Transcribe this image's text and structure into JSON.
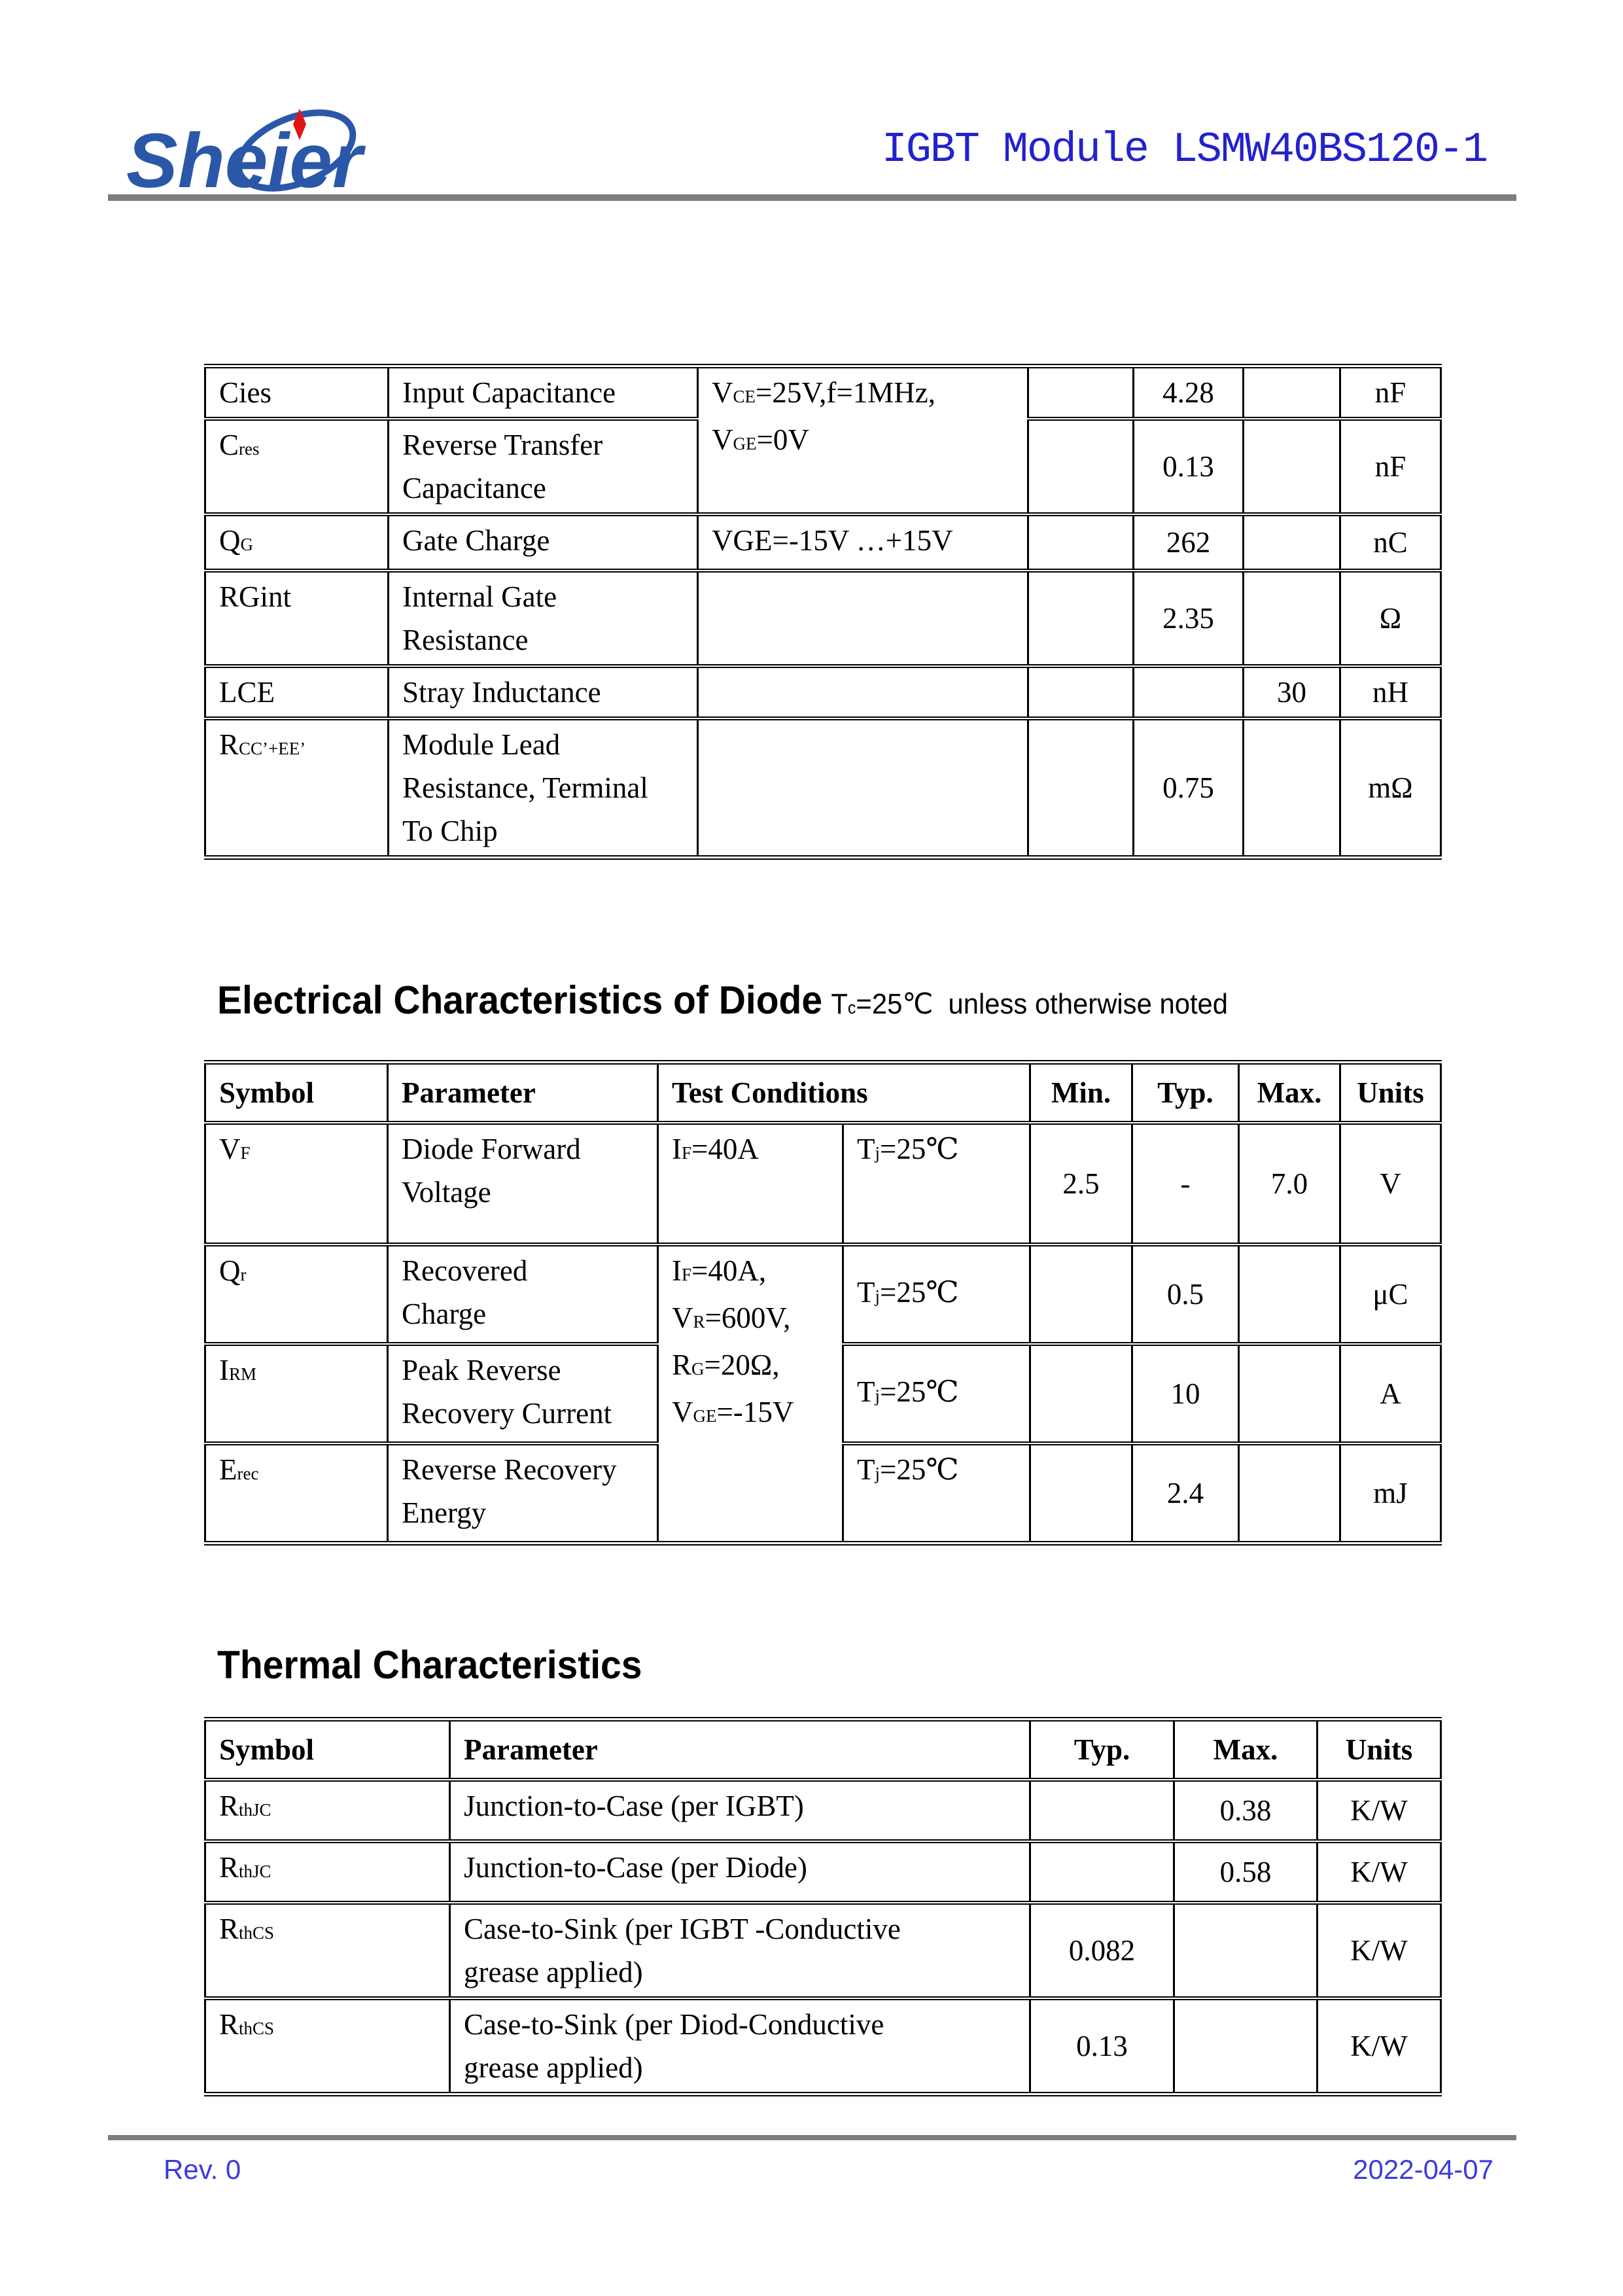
{
  "header": {
    "brand": "Sheier",
    "title": "IGBT Module LSMW40BS120-1"
  },
  "colors": {
    "title_blue": "#2222cf",
    "footer_blue": "#3b3bdc",
    "logo_blue": "#2b57a8",
    "logo_spark_red": "#e11414",
    "rule_gray": "#7d7d7d"
  },
  "headings": {
    "diode": {
      "title": "Electrical Characteristics of Diode",
      "suffix": [
        {
          "t": "T"
        },
        {
          "t": "c",
          "sub": true
        },
        {
          "t": "=25℃  unless otherwise noted"
        }
      ]
    },
    "thermal": {
      "title": "Thermal Characteristics"
    }
  },
  "t1": {
    "rows": [
      {
        "symbol": [
          {
            "t": "Cies"
          }
        ],
        "parameter": [
          {
            "t": "Input Capacitance"
          }
        ],
        "cond": [
          [
            {
              "t": "V"
            },
            {
              "t": "CE",
              "sub": true
            },
            {
              "t": "=25V,f=1MHz,"
            }
          ],
          [
            {
              "t": "V"
            },
            {
              "t": "GE",
              "sub": true
            },
            {
              "t": "=0V"
            }
          ]
        ],
        "min": "",
        "typ": "4.28",
        "max": "",
        "units": "nF"
      },
      {
        "symbol": [
          {
            "t": "C"
          },
          {
            "t": "res",
            "sub": true
          }
        ],
        "parameter": [
          [
            {
              "t": "Reverse Transfer"
            }
          ],
          [
            {
              "t": "Capacitance"
            }
          ]
        ],
        "min": "",
        "typ": "0.13",
        "max": "",
        "units": "nF"
      },
      {
        "symbol": [
          {
            "t": "Q"
          },
          {
            "t": "G",
            "sub": true
          }
        ],
        "parameter": [
          {
            "t": "Gate Charge"
          }
        ],
        "cond": [
          {
            "t": "VGE=-15V …+15V"
          }
        ],
        "min": "",
        "typ": "262",
        "max": "",
        "units": "nC"
      },
      {
        "symbol": [
          {
            "t": "RGint"
          }
        ],
        "parameter": [
          [
            {
              "t": "Internal Gate"
            }
          ],
          [
            {
              "t": "Resistance"
            }
          ]
        ],
        "cond": [
          {
            "t": ""
          }
        ],
        "min": "",
        "typ": "2.35",
        "max": "",
        "units": "Ω"
      },
      {
        "symbol": [
          {
            "t": "LCE"
          }
        ],
        "parameter": [
          {
            "t": "Stray Inductance"
          }
        ],
        "cond": [
          {
            "t": ""
          }
        ],
        "min": "",
        "typ": "",
        "max": "30",
        "units": "nH"
      },
      {
        "symbol": [
          {
            "t": "R"
          },
          {
            "t": "CC’+EE’",
            "sub": true
          }
        ],
        "parameter": [
          [
            {
              "t": "Module Lead"
            }
          ],
          [
            {
              "t": "Resistance, Terminal"
            }
          ],
          [
            {
              "t": "To Chip"
            }
          ]
        ],
        "cond": [
          {
            "t": ""
          }
        ],
        "min": "",
        "typ": "0.75",
        "max": "",
        "units": "mΩ"
      }
    ]
  },
  "t2": {
    "headers": [
      "Symbol",
      "Parameter",
      "Test Conditions",
      "Min.",
      "Typ.",
      "Max.",
      "Units"
    ],
    "rows": [
      {
        "symbol": [
          {
            "t": "V"
          },
          {
            "t": "F",
            "sub": true
          }
        ],
        "parameter": [
          [
            {
              "t": "Diode Forward"
            }
          ],
          [
            {
              "t": "Voltage"
            }
          ]
        ],
        "cond1": [
          {
            "t": "I"
          },
          {
            "t": "F",
            "sub": true
          },
          {
            "t": "=40A"
          }
        ],
        "cond2": [
          {
            "t": "T"
          },
          {
            "t": "j",
            "sub": true
          },
          {
            "t": "=25℃"
          }
        ],
        "min": "2.5",
        "typ": "-",
        "max": "7.0",
        "units": "V"
      },
      {
        "symbol": [
          {
            "t": "Q"
          },
          {
            "t": "r",
            "sub": true
          }
        ],
        "parameter": [
          [
            {
              "t": "Recovered"
            }
          ],
          [
            {
              "t": "Charge"
            }
          ]
        ],
        "cond1": [
          [
            {
              "t": "I"
            },
            {
              "t": "F",
              "sub": true
            },
            {
              "t": "=40A,"
            }
          ],
          [
            {
              "t": "V"
            },
            {
              "t": "R",
              "sub": true
            },
            {
              "t": "=600V,"
            }
          ],
          [
            {
              "t": "R"
            },
            {
              "t": "G",
              "sub": true
            },
            {
              "t": "=20Ω,"
            }
          ],
          [
            {
              "t": "V"
            },
            {
              "t": "GE",
              "sub": true
            },
            {
              "t": "=-15V"
            }
          ]
        ],
        "cond2": [
          {
            "t": "T"
          },
          {
            "t": "j",
            "sub": true
          },
          {
            "t": "=25℃"
          }
        ],
        "min": "",
        "typ": "0.5",
        "max": "",
        "units": "μC"
      },
      {
        "symbol": [
          {
            "t": "I"
          },
          {
            "t": "RM",
            "sub": true
          }
        ],
        "parameter": [
          [
            {
              "t": "Peak Reverse"
            }
          ],
          [
            {
              "t": "Recovery Current"
            }
          ]
        ],
        "cond2": [
          {
            "t": "T"
          },
          {
            "t": "j",
            "sub": true
          },
          {
            "t": "=25℃"
          }
        ],
        "min": "",
        "typ": "10",
        "max": "",
        "units": "A"
      },
      {
        "symbol": [
          {
            "t": "E"
          },
          {
            "t": "rec",
            "sub": true
          }
        ],
        "parameter": [
          [
            {
              "t": "Reverse Recovery"
            }
          ],
          [
            {
              "t": "Energy"
            }
          ]
        ],
        "cond2": [
          {
            "t": "T"
          },
          {
            "t": "j",
            "sub": true
          },
          {
            "t": "=25℃"
          }
        ],
        "min": "",
        "typ": "2.4",
        "max": "",
        "units": "mJ"
      }
    ]
  },
  "t3": {
    "headers": [
      "Symbol",
      "Parameter",
      "Typ.",
      "Max.",
      "Units"
    ],
    "rows": [
      {
        "symbol": [
          {
            "t": "R"
          },
          {
            "t": "thJC",
            "sub": true
          }
        ],
        "parameter": [
          {
            "t": "Junction-to-Case (per IGBT)"
          }
        ],
        "typ": "",
        "max": "0.38",
        "units": "K/W"
      },
      {
        "symbol": [
          {
            "t": "R"
          },
          {
            "t": "thJC",
            "sub": true
          }
        ],
        "parameter": [
          {
            "t": "Junction-to-Case (per Diode)"
          }
        ],
        "typ": "",
        "max": "0.58",
        "units": "K/W"
      },
      {
        "symbol": [
          {
            "t": "R"
          },
          {
            "t": "thCS",
            "sub": true
          }
        ],
        "parameter": [
          [
            {
              "t": "Case-to-Sink (per IGBT -Conductive"
            }
          ],
          [
            {
              "t": "grease applied)"
            }
          ]
        ],
        "typ": "0.082",
        "max": "",
        "units": "K/W"
      },
      {
        "symbol": [
          {
            "t": "R"
          },
          {
            "t": "thCS",
            "sub": true
          }
        ],
        "parameter": [
          [
            {
              "t": "Case-to-Sink (per Diod-Conductive"
            }
          ],
          [
            {
              "t": "grease applied)"
            }
          ]
        ],
        "typ": "0.13",
        "max": "",
        "units": "K/W"
      }
    ]
  },
  "footer": {
    "rev": "Rev. 0",
    "date": "2022-04-07"
  }
}
